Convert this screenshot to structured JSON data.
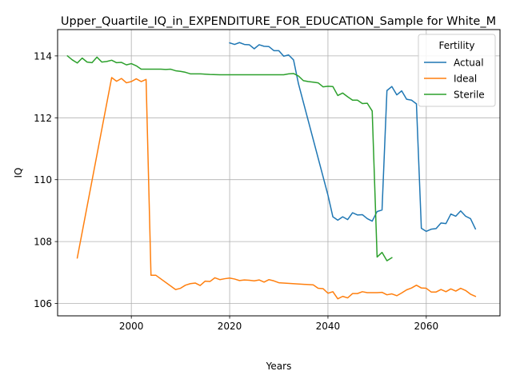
{
  "chart_data": {
    "type": "line",
    "title": "Upper_Quartile_IQ_in_EXPENDITURE_FOR_EDUCATION_Sample for White_M",
    "xlabel": "Years",
    "ylabel": "IQ",
    "xlim": [
      1985,
      2075
    ],
    "ylim": [
      105.6,
      114.85
    ],
    "x_ticks": [
      2000,
      2020,
      2040,
      2060
    ],
    "y_ticks": [
      106,
      108,
      110,
      112,
      114
    ],
    "grid": true,
    "legend": {
      "title": "Fertility",
      "position": "top-right"
    },
    "series": [
      {
        "name": "Actual",
        "color": "#1f77b4",
        "points": [
          [
            2020,
            114.42
          ],
          [
            2021,
            114.37
          ],
          [
            2022,
            114.43
          ],
          [
            2023,
            114.37
          ],
          [
            2024,
            114.36
          ],
          [
            2025,
            114.23
          ],
          [
            2026,
            114.36
          ],
          [
            2027,
            114.31
          ],
          [
            2028,
            114.3
          ],
          [
            2029,
            114.17
          ],
          [
            2030,
            114.17
          ],
          [
            2031,
            113.99
          ],
          [
            2032,
            114.03
          ],
          [
            2033,
            113.87
          ],
          [
            2034,
            113.1
          ],
          [
            2040,
            109.5
          ],
          [
            2041,
            108.8
          ],
          [
            2042,
            108.69
          ],
          [
            2043,
            108.8
          ],
          [
            2044,
            108.71
          ],
          [
            2045,
            108.93
          ],
          [
            2046,
            108.86
          ],
          [
            2047,
            108.87
          ],
          [
            2048,
            108.74
          ],
          [
            2049,
            108.66
          ],
          [
            2050,
            108.97
          ],
          [
            2051,
            109.02
          ],
          [
            2052,
            112.88
          ],
          [
            2053,
            113.01
          ],
          [
            2054,
            112.74
          ],
          [
            2055,
            112.87
          ],
          [
            2056,
            112.6
          ],
          [
            2057,
            112.57
          ],
          [
            2058,
            112.45
          ],
          [
            2059,
            108.43
          ],
          [
            2060,
            108.33
          ],
          [
            2061,
            108.4
          ],
          [
            2062,
            108.42
          ],
          [
            2063,
            108.6
          ],
          [
            2064,
            108.58
          ],
          [
            2065,
            108.89
          ],
          [
            2066,
            108.82
          ],
          [
            2067,
            108.99
          ],
          [
            2068,
            108.82
          ],
          [
            2069,
            108.74
          ],
          [
            2070,
            108.41
          ]
        ]
      },
      {
        "name": "Ideal",
        "color": "#ff7f0e",
        "points": [
          [
            1989,
            107.47
          ],
          [
            1996,
            113.3
          ],
          [
            1997,
            113.18
          ],
          [
            1998,
            113.27
          ],
          [
            1999,
            113.13
          ],
          [
            2000,
            113.17
          ],
          [
            2001,
            113.26
          ],
          [
            2002,
            113.17
          ],
          [
            2003,
            113.24
          ],
          [
            2004,
            106.91
          ],
          [
            2005,
            106.91
          ],
          [
            2009,
            106.45
          ],
          [
            2010,
            106.49
          ],
          [
            2011,
            106.59
          ],
          [
            2012,
            106.64
          ],
          [
            2013,
            106.66
          ],
          [
            2014,
            106.58
          ],
          [
            2015,
            106.72
          ],
          [
            2016,
            106.71
          ],
          [
            2017,
            106.83
          ],
          [
            2018,
            106.77
          ],
          [
            2019,
            106.8
          ],
          [
            2020,
            106.82
          ],
          [
            2021,
            106.79
          ],
          [
            2022,
            106.74
          ],
          [
            2023,
            106.76
          ],
          [
            2024,
            106.75
          ],
          [
            2025,
            106.73
          ],
          [
            2026,
            106.76
          ],
          [
            2027,
            106.69
          ],
          [
            2028,
            106.77
          ],
          [
            2029,
            106.73
          ],
          [
            2030,
            106.67
          ],
          [
            2037,
            106.6
          ],
          [
            2038,
            106.49
          ],
          [
            2039,
            106.48
          ],
          [
            2040,
            106.33
          ],
          [
            2041,
            106.38
          ],
          [
            2042,
            106.15
          ],
          [
            2043,
            106.23
          ],
          [
            2044,
            106.18
          ],
          [
            2045,
            106.32
          ],
          [
            2046,
            106.32
          ],
          [
            2047,
            106.38
          ],
          [
            2048,
            106.35
          ],
          [
            2049,
            106.35
          ],
          [
            2050,
            106.35
          ],
          [
            2051,
            106.36
          ],
          [
            2052,
            106.28
          ],
          [
            2053,
            106.31
          ],
          [
            2054,
            106.25
          ],
          [
            2055,
            106.34
          ],
          [
            2056,
            106.44
          ],
          [
            2057,
            106.5
          ],
          [
            2058,
            106.59
          ],
          [
            2059,
            106.5
          ],
          [
            2060,
            106.49
          ],
          [
            2061,
            106.37
          ],
          [
            2062,
            106.37
          ],
          [
            2063,
            106.45
          ],
          [
            2064,
            106.38
          ],
          [
            2065,
            106.47
          ],
          [
            2066,
            106.4
          ],
          [
            2067,
            106.49
          ],
          [
            2068,
            106.42
          ],
          [
            2069,
            106.3
          ],
          [
            2070,
            106.23
          ]
        ]
      },
      {
        "name": "Sterile",
        "color": "#2ca02c",
        "points": [
          [
            1987,
            114.0
          ],
          [
            1988,
            113.87
          ],
          [
            1989,
            113.77
          ],
          [
            1990,
            113.93
          ],
          [
            1991,
            113.8
          ],
          [
            1992,
            113.78
          ],
          [
            1993,
            113.96
          ],
          [
            1994,
            113.8
          ],
          [
            1995,
            113.82
          ],
          [
            1996,
            113.86
          ],
          [
            1997,
            113.78
          ],
          [
            1998,
            113.79
          ],
          [
            1999,
            113.71
          ],
          [
            2000,
            113.75
          ],
          [
            2001,
            113.68
          ],
          [
            2002,
            113.57
          ],
          [
            2003,
            113.57
          ],
          [
            2006,
            113.57
          ],
          [
            2007,
            113.56
          ],
          [
            2008,
            113.57
          ],
          [
            2009,
            113.52
          ],
          [
            2010,
            113.5
          ],
          [
            2011,
            113.47
          ],
          [
            2012,
            113.42
          ],
          [
            2013,
            113.42
          ],
          [
            2014,
            113.42
          ],
          [
            2015,
            113.41
          ],
          [
            2016,
            113.4
          ],
          [
            2018,
            113.39
          ],
          [
            2031,
            113.39
          ],
          [
            2032,
            113.42
          ],
          [
            2033,
            113.43
          ],
          [
            2034,
            113.35
          ],
          [
            2035,
            113.2
          ],
          [
            2036,
            113.17
          ],
          [
            2037,
            113.15
          ],
          [
            2038,
            113.13
          ],
          [
            2039,
            113.0
          ],
          [
            2040,
            113.02
          ],
          [
            2041,
            113.01
          ],
          [
            2042,
            112.72
          ],
          [
            2043,
            112.8
          ],
          [
            2044,
            112.68
          ],
          [
            2045,
            112.57
          ],
          [
            2046,
            112.57
          ],
          [
            2047,
            112.46
          ],
          [
            2048,
            112.47
          ],
          [
            2049,
            112.22
          ],
          [
            2050,
            107.5
          ],
          [
            2051,
            107.65
          ],
          [
            2052,
            107.38
          ],
          [
            2053,
            107.48
          ]
        ]
      }
    ]
  }
}
